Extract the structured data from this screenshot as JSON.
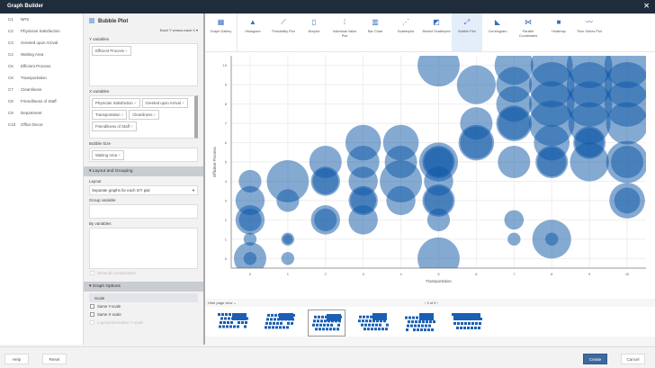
{
  "window": {
    "title": "Graph Builder",
    "close": "✕"
  },
  "variables": [
    {
      "id": "C1",
      "name": "NPS"
    },
    {
      "id": "C2",
      "name": "Physician Satisfaction"
    },
    {
      "id": "C3",
      "name": "Greeted upon Arrival"
    },
    {
      "id": "C4",
      "name": "Waiting Area"
    },
    {
      "id": "C5",
      "name": "Efficient Process"
    },
    {
      "id": "C6",
      "name": "Transportation"
    },
    {
      "id": "C7",
      "name": "Cleanliness"
    },
    {
      "id": "C8",
      "name": "Friendliness of Staff"
    },
    {
      "id": "C9",
      "name": "Department"
    },
    {
      "id": "C10",
      "name": "Office Decor"
    }
  ],
  "config": {
    "title": "Bubble Plot",
    "mode": "Each Y versus each X ▾",
    "y_label": "Y variables",
    "y_vars": [
      "Efficient Process"
    ],
    "x_label": "X variables",
    "x_vars": [
      "Physician Satisfaction",
      "Greeted upon Arrival",
      "Transportation",
      "Cleanliness",
      "Friendliness of Staff"
    ],
    "size_label": "Bubble Size",
    "size_vars": [
      "Waiting Area"
    ],
    "layout_section": "▾ Layout and Grouping",
    "layout_label": "Layout",
    "layout_value": "Separate graphs for each X/Y pair",
    "group_label": "Group variable",
    "by_label": "By variables",
    "show_all": "Show all combinations",
    "options_section": "▾ Graph Options",
    "scale_label": "Scale",
    "same_y": "Same Y-scale",
    "same_x": "Same X-scale",
    "log_y": "Log transformation Y scale"
  },
  "toolbar": [
    {
      "label": "Graph Gallery",
      "icon": "grid-icon",
      "glyph": "▦"
    },
    {
      "label": "Histogram",
      "icon": "histogram-icon",
      "glyph": "▲"
    },
    {
      "label": "Probability Plot",
      "icon": "probability-plot-icon",
      "glyph": "⟋"
    },
    {
      "label": "Boxplot",
      "icon": "boxplot-icon",
      "glyph": "▯"
    },
    {
      "label": "Individual Value Plot",
      "icon": "individual-value-plot-icon",
      "glyph": "⁞"
    },
    {
      "label": "Bar Chart",
      "icon": "bar-chart-icon",
      "glyph": "▥"
    },
    {
      "label": "Scatterplot",
      "icon": "scatterplot-icon",
      "glyph": "⋰"
    },
    {
      "label": "Binned Scatterplot",
      "icon": "binned-scatterplot-icon",
      "glyph": "◩"
    },
    {
      "label": "Bubble Plot",
      "icon": "bubble-plot-icon",
      "glyph": "⤢"
    },
    {
      "label": "Correlogram",
      "icon": "correlogram-icon",
      "glyph": "◣"
    },
    {
      "label": "Parallel Coordinates",
      "icon": "parallel-coordinates-icon",
      "glyph": "⋈"
    },
    {
      "label": "Heatmap",
      "icon": "heatmap-icon",
      "glyph": "■"
    },
    {
      "label": "Time Series Plot",
      "icon": "time-series-icon",
      "glyph": "〰"
    }
  ],
  "active_tool": "Bubble Plot",
  "pager": {
    "label": "Hide page view ⌄",
    "page": "3 of 6",
    "prev": "‹",
    "next": "›"
  },
  "footer": {
    "help": "Help",
    "reset": "Reset",
    "create": "Create",
    "cancel": "Cancel"
  },
  "chart_data": {
    "type": "scatter",
    "subtype": "bubble",
    "xlabel": "Transportation",
    "ylabel": "Efficient Process",
    "xlim": [
      -0.5,
      10.5
    ],
    "ylim": [
      -0.5,
      10.5
    ],
    "xticks": [
      0,
      1,
      2,
      3,
      4,
      5,
      6,
      7,
      8,
      9,
      10
    ],
    "yticks": [
      0,
      1,
      2,
      3,
      4,
      5,
      6,
      7,
      8,
      9,
      10
    ],
    "grid": true,
    "color": "#0b55a6",
    "points": [
      [
        0,
        4,
        7
      ],
      [
        0,
        3,
        9
      ],
      [
        0,
        2,
        9
      ],
      [
        0,
        2,
        7
      ],
      [
        0,
        1,
        4
      ],
      [
        0,
        0,
        10
      ],
      [
        0,
        0,
        4
      ],
      [
        1,
        4,
        13
      ],
      [
        1,
        3,
        7
      ],
      [
        1,
        1,
        4
      ],
      [
        1,
        1,
        3
      ],
      [
        1,
        0,
        4
      ],
      [
        2,
        5,
        10
      ],
      [
        2,
        4,
        9
      ],
      [
        2,
        4,
        8
      ],
      [
        2,
        2,
        9
      ],
      [
        2,
        2,
        7
      ],
      [
        3,
        6,
        11
      ],
      [
        3,
        5,
        10
      ],
      [
        3,
        4,
        9
      ],
      [
        3,
        3,
        9
      ],
      [
        3,
        3,
        8
      ],
      [
        3,
        2,
        9
      ],
      [
        4,
        6,
        11
      ],
      [
        4,
        5,
        10
      ],
      [
        4,
        4,
        13
      ],
      [
        4,
        3,
        9
      ],
      [
        5,
        10,
        13
      ],
      [
        5,
        5,
        12
      ],
      [
        5,
        5,
        10
      ],
      [
        5,
        5,
        9
      ],
      [
        5,
        4,
        9
      ],
      [
        5,
        3,
        10
      ],
      [
        5,
        3,
        9
      ],
      [
        5,
        2,
        7
      ],
      [
        5,
        0,
        13
      ],
      [
        6,
        9,
        12
      ],
      [
        6,
        7,
        10
      ],
      [
        6,
        6,
        11
      ],
      [
        6,
        6,
        10
      ],
      [
        7,
        10,
        12
      ],
      [
        7,
        9,
        11
      ],
      [
        7,
        8,
        11
      ],
      [
        7,
        7,
        11
      ],
      [
        7,
        7,
        10
      ],
      [
        7,
        5,
        10
      ],
      [
        7,
        2,
        6
      ],
      [
        7,
        1,
        4
      ],
      [
        8,
        10,
        13
      ],
      [
        8,
        9,
        14
      ],
      [
        8,
        8,
        14
      ],
      [
        8,
        7,
        14
      ],
      [
        8,
        6,
        11
      ],
      [
        8,
        5,
        10
      ],
      [
        8,
        5,
        9
      ],
      [
        8,
        1,
        12
      ],
      [
        8,
        1,
        4
      ],
      [
        9,
        10,
        14
      ],
      [
        9,
        9,
        14
      ],
      [
        9,
        8,
        14
      ],
      [
        9,
        7,
        13
      ],
      [
        9,
        6,
        10
      ],
      [
        9,
        6,
        9
      ],
      [
        9,
        5,
        12
      ],
      [
        10,
        10,
        14
      ],
      [
        10,
        9,
        14
      ],
      [
        10,
        8,
        14
      ],
      [
        10,
        7,
        13
      ],
      [
        10,
        5,
        13
      ],
      [
        10,
        5,
        10
      ],
      [
        10,
        3,
        11
      ],
      [
        10,
        3,
        8
      ]
    ]
  }
}
